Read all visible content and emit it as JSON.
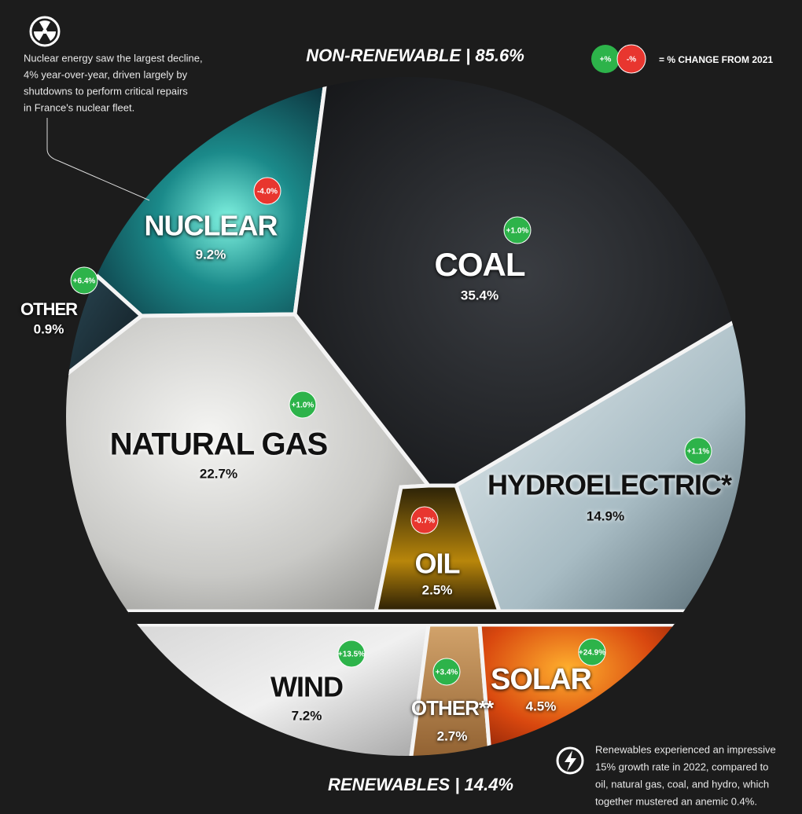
{
  "header": {
    "non_renewable": "NON-RENEWABLE | 85.6%",
    "renewables": "RENEWABLES | 14.4%"
  },
  "legend": {
    "increase": "+%",
    "decrease": "-%",
    "label": "= % CHANGE FROM 2021"
  },
  "notes": {
    "nuclear": [
      "Nuclear energy saw the largest decline,",
      "4% year-over-year, driven largely by",
      "shutdowns to perform critical repairs",
      "in France's nuclear fleet."
    ],
    "renewables": [
      "Renewables experienced an impressive",
      "15% growth rate in 2022, compared to",
      "oil, natural gas, coal, and hydro, which",
      "together mustered an anemic 0.4%."
    ]
  },
  "segments": [
    {
      "name": "NUCLEAR",
      "share": "9.2%",
      "change": "-4.0%"
    },
    {
      "name": "COAL",
      "share": "35.4%",
      "change": "+1.0%"
    },
    {
      "name": "OTHER",
      "share": "0.9%",
      "change": "+6.4%"
    },
    {
      "name": "NATURAL GAS",
      "share": "22.7%",
      "change": "+1.0%"
    },
    {
      "name": "HYDROELECTRIC*",
      "share": "14.9%",
      "change": "+1.1%"
    },
    {
      "name": "OIL",
      "share": "2.5%",
      "change": "-0.7%"
    },
    {
      "name": "WIND",
      "share": "7.2%",
      "change": "+13.5%"
    },
    {
      "name": "OTHER**",
      "share": "2.7%",
      "change": "+3.4%"
    },
    {
      "name": "SOLAR",
      "share": "4.5%",
      "change": "+24.9%"
    }
  ]
}
